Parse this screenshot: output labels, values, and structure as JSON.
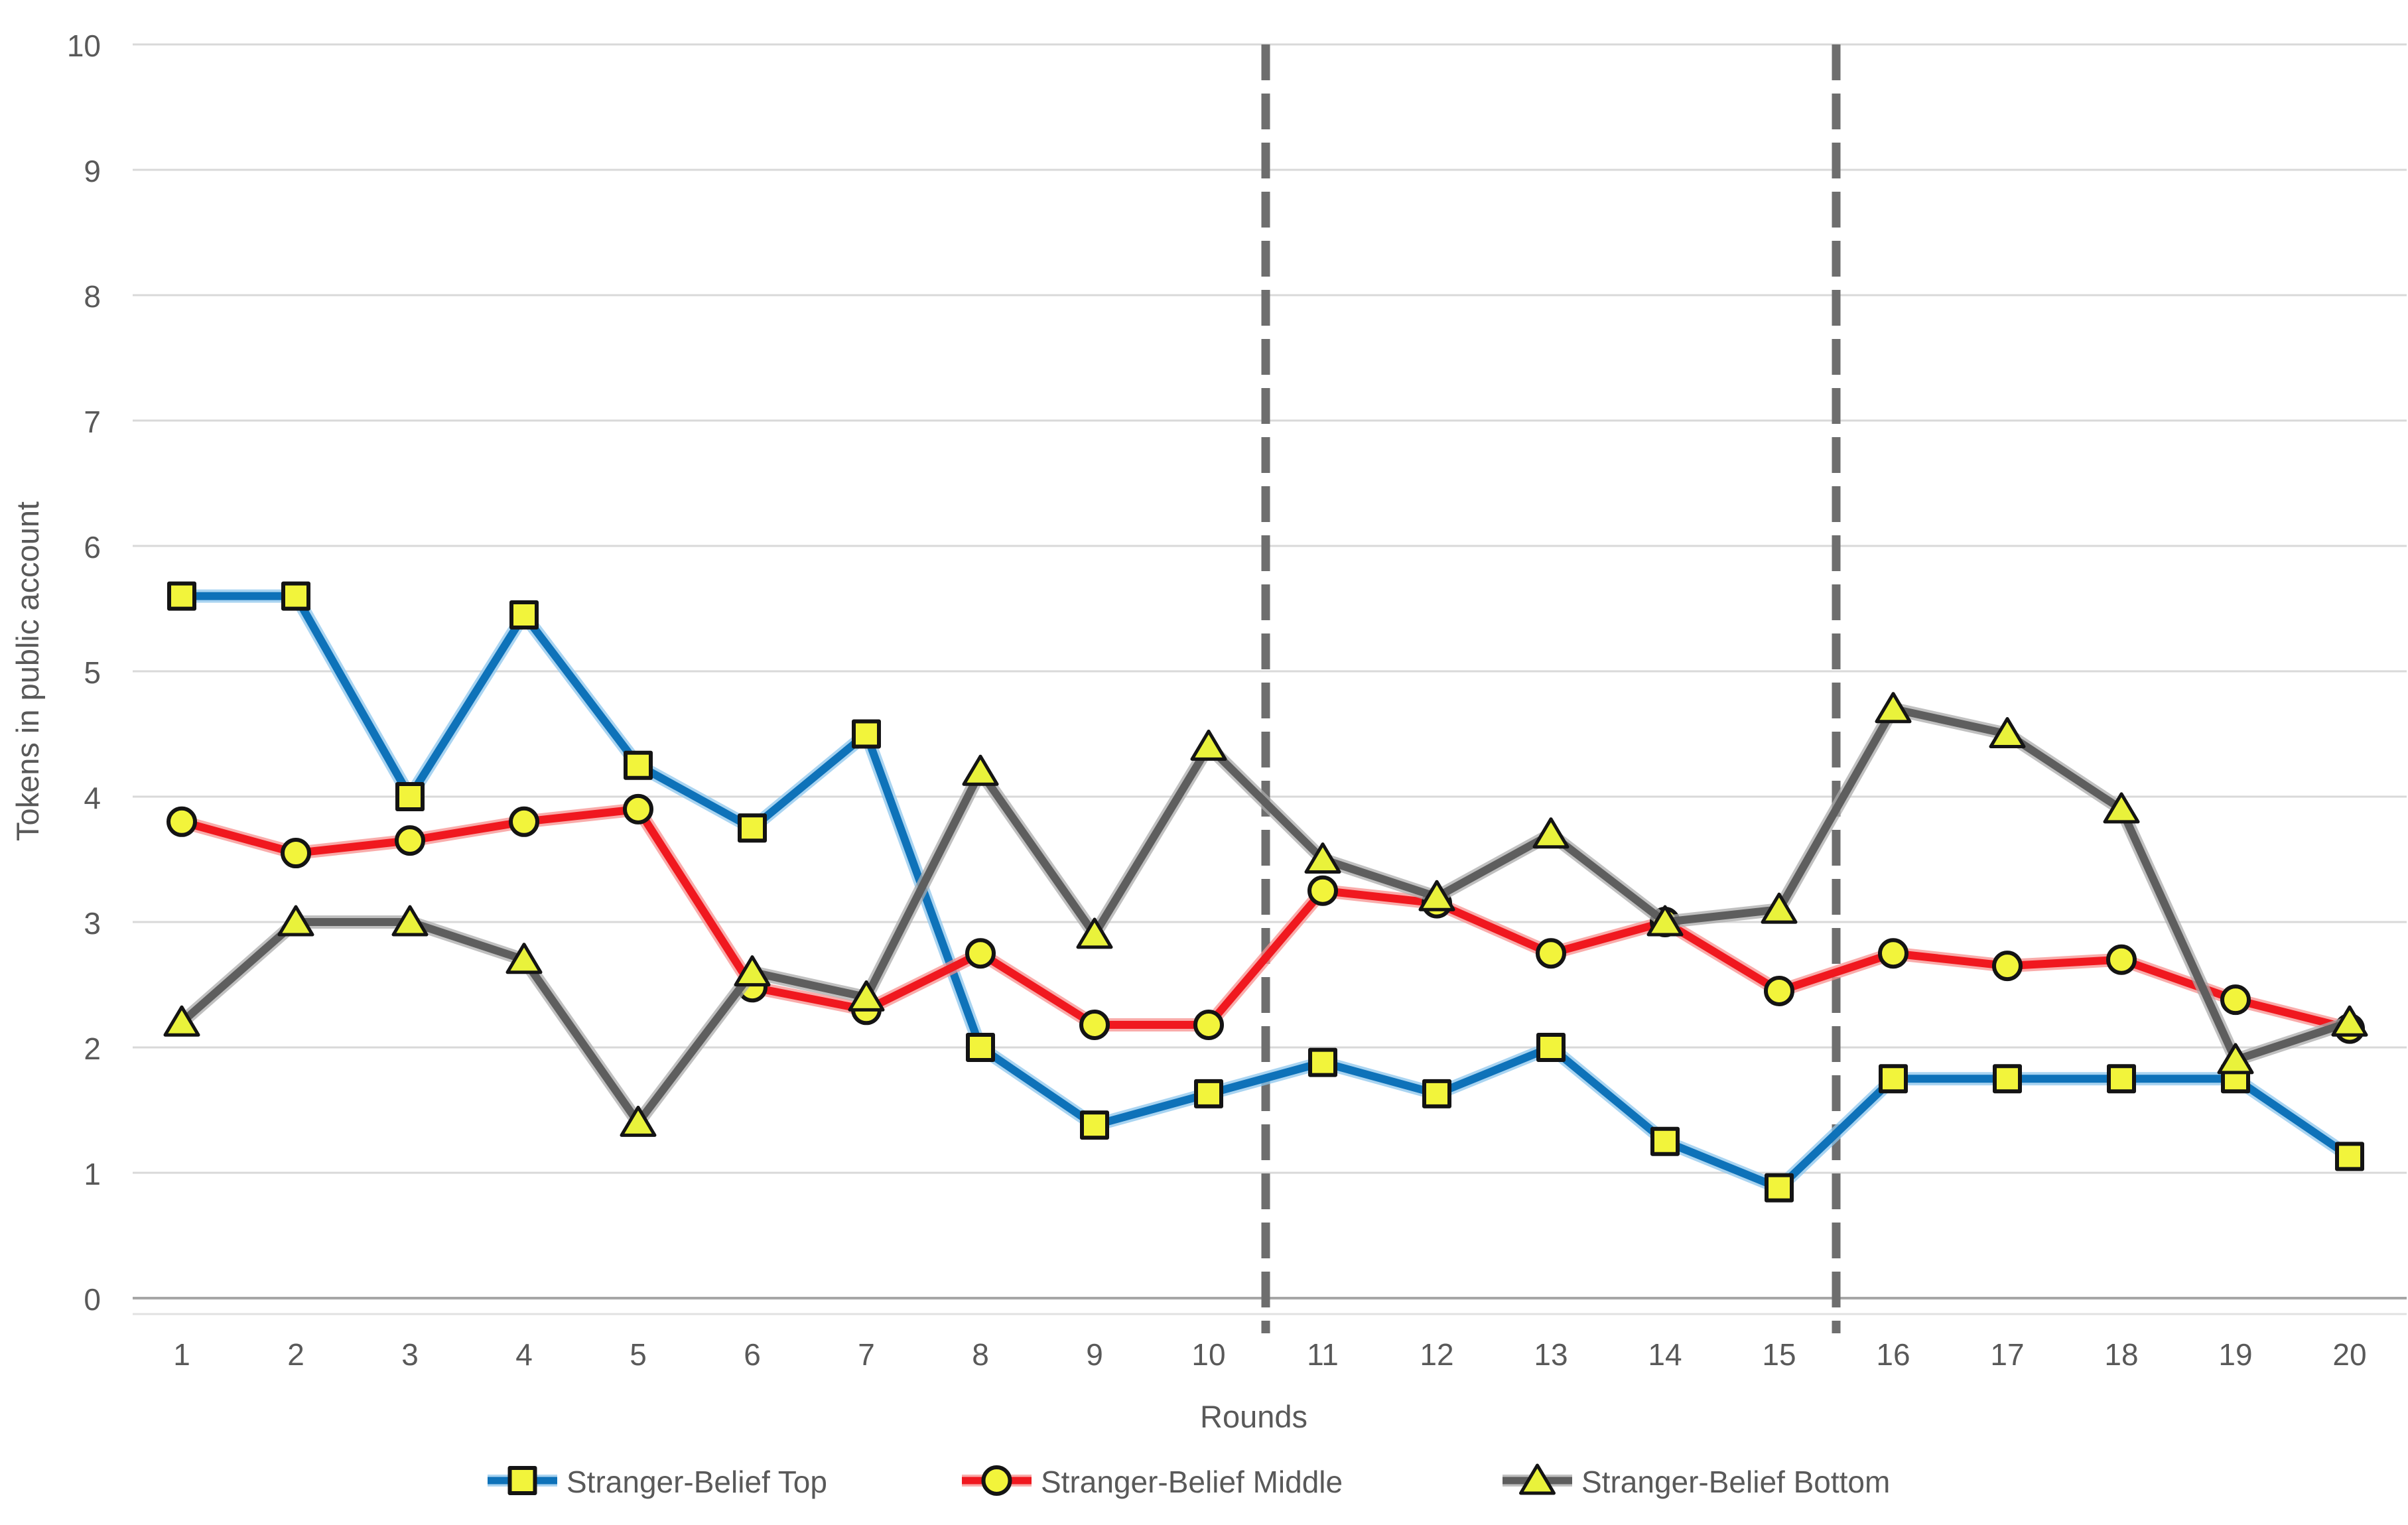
{
  "chart_data": {
    "type": "line",
    "title": "",
    "xlabel": "Rounds",
    "ylabel": "Tokens in public account",
    "x": [
      1,
      2,
      3,
      4,
      5,
      6,
      7,
      8,
      9,
      10,
      11,
      12,
      13,
      14,
      15,
      16,
      17,
      18,
      19,
      20
    ],
    "ylim": [
      0,
      10
    ],
    "yticks": [
      0,
      1,
      2,
      3,
      4,
      5,
      6,
      7,
      8,
      9,
      10
    ],
    "grid": "horizontal",
    "legend_position": "bottom",
    "phase_dividers_x": [
      10.5,
      15.5
    ],
    "series": [
      {
        "name": "Stranger-Belief Top",
        "marker": "square",
        "color": "#0E72B9",
        "halo": "#8CC6EC",
        "marker_fill": "#F2F43B",
        "values": [
          5.6,
          5.6,
          4.0,
          5.45,
          4.25,
          3.75,
          4.5,
          2.0,
          1.38,
          1.63,
          1.88,
          1.63,
          2.0,
          1.25,
          0.88,
          1.75,
          1.75,
          1.75,
          1.75,
          1.13
        ]
      },
      {
        "name": "Stranger-Belief Middle",
        "marker": "circle",
        "color": "#F0181F",
        "halo": "#F7908F",
        "marker_fill": "#F2F43B",
        "values": [
          3.8,
          3.55,
          3.65,
          3.8,
          3.9,
          2.48,
          2.3,
          2.75,
          2.18,
          2.18,
          3.25,
          3.15,
          2.75,
          3.0,
          2.45,
          2.75,
          2.65,
          2.7,
          2.38,
          2.15
        ]
      },
      {
        "name": "Stranger-Belief Bottom",
        "marker": "triangle",
        "color": "#5E5E5E",
        "halo": "#ABABAB",
        "marker_fill": "#E9F23B",
        "values": [
          2.2,
          3.0,
          3.0,
          2.7,
          1.4,
          2.6,
          2.4,
          4.2,
          2.9,
          4.4,
          3.5,
          3.2,
          3.7,
          3.0,
          3.1,
          4.7,
          4.5,
          3.9,
          1.9,
          2.2
        ]
      }
    ],
    "colors": {
      "gridline": "#D9D9D9",
      "axis_line": "#A6A6A6",
      "axis_subline": "#E2E2E2",
      "divider": "#6E6E6E",
      "text": "#595959",
      "marker_outline": "#141414"
    }
  }
}
